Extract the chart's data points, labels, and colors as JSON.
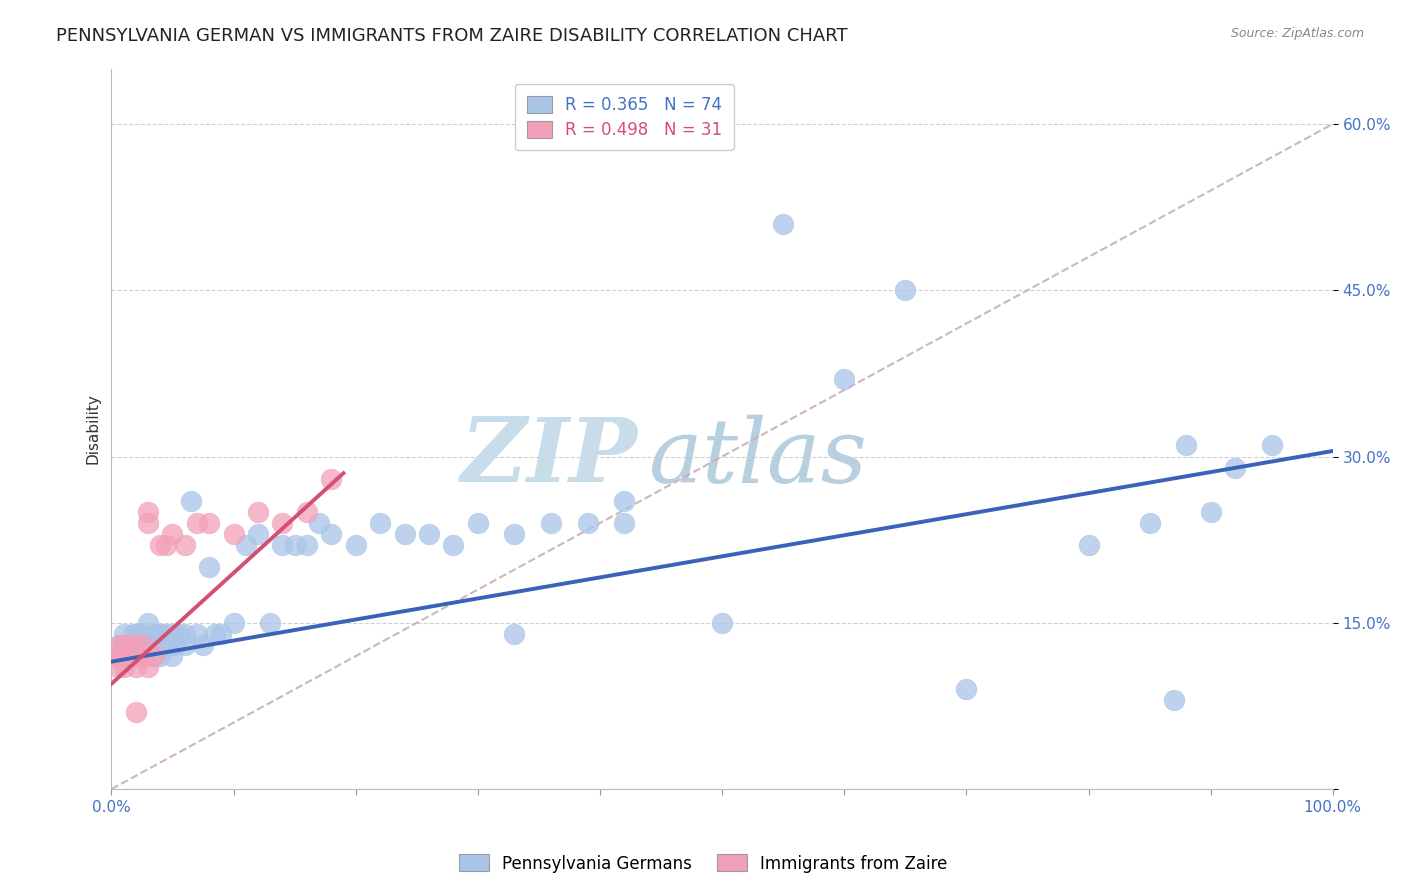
{
  "title": "PENNSYLVANIA GERMAN VS IMMIGRANTS FROM ZAIRE DISABILITY CORRELATION CHART",
  "source_text": "Source: ZipAtlas.com",
  "ylabel": "Disability",
  "watermark": "ZIPAtlas",
  "xlim": [
    0.0,
    1.0
  ],
  "ylim": [
    0.0,
    0.65
  ],
  "xticks": [
    0.0,
    0.1,
    0.2,
    0.3,
    0.4,
    0.5,
    0.6,
    0.7,
    0.8,
    0.9,
    1.0
  ],
  "xticklabels": [
    "0.0%",
    "",
    "",
    "",
    "",
    "",
    "",
    "",
    "",
    "",
    "100.0%"
  ],
  "yticks": [
    0.0,
    0.15,
    0.3,
    0.45,
    0.6
  ],
  "yticklabels": [
    "",
    "15.0%",
    "30.0%",
    "45.0%",
    "60.0%"
  ],
  "legend1_label": "R = 0.365   N = 74",
  "legend2_label": "R = 0.498   N = 31",
  "blue_dot_color": "#aac4e8",
  "pink_dot_color": "#f2a0b8",
  "blue_line_color": "#3a62b8",
  "pink_line_color": "#d45070",
  "dashed_line_color": "#c8b0b0",
  "title_fontsize": 13,
  "axis_label_fontsize": 11,
  "tick_fontsize": 11,
  "legend_fontsize": 12,
  "watermark_fontsize": 65,
  "watermark_color": "#cde4f0",
  "blue_x": [
    0.005,
    0.008,
    0.01,
    0.01,
    0.012,
    0.015,
    0.015,
    0.018,
    0.018,
    0.02,
    0.02,
    0.02,
    0.022,
    0.025,
    0.025,
    0.025,
    0.028,
    0.03,
    0.03,
    0.03,
    0.032,
    0.035,
    0.035,
    0.038,
    0.04,
    0.04,
    0.042,
    0.045,
    0.048,
    0.05,
    0.05,
    0.052,
    0.055,
    0.06,
    0.06,
    0.065,
    0.07,
    0.075,
    0.08,
    0.085,
    0.09,
    0.1,
    0.11,
    0.12,
    0.13,
    0.14,
    0.15,
    0.16,
    0.17,
    0.18,
    0.2,
    0.22,
    0.24,
    0.26,
    0.28,
    0.3,
    0.33,
    0.36,
    0.39,
    0.42,
    0.33,
    0.42,
    0.5,
    0.55,
    0.6,
    0.65,
    0.7,
    0.8,
    0.85,
    0.87,
    0.88,
    0.9,
    0.92,
    0.95
  ],
  "blue_y": [
    0.13,
    0.12,
    0.13,
    0.14,
    0.12,
    0.12,
    0.13,
    0.12,
    0.14,
    0.12,
    0.13,
    0.14,
    0.13,
    0.12,
    0.13,
    0.14,
    0.13,
    0.12,
    0.13,
    0.15,
    0.13,
    0.12,
    0.14,
    0.14,
    0.12,
    0.14,
    0.13,
    0.14,
    0.13,
    0.12,
    0.14,
    0.13,
    0.14,
    0.13,
    0.14,
    0.26,
    0.14,
    0.13,
    0.2,
    0.14,
    0.14,
    0.15,
    0.22,
    0.23,
    0.15,
    0.22,
    0.22,
    0.22,
    0.24,
    0.23,
    0.22,
    0.24,
    0.23,
    0.23,
    0.22,
    0.24,
    0.23,
    0.24,
    0.24,
    0.24,
    0.14,
    0.26,
    0.15,
    0.51,
    0.37,
    0.45,
    0.09,
    0.22,
    0.24,
    0.08,
    0.31,
    0.25,
    0.29,
    0.31
  ],
  "pink_x": [
    0.003,
    0.005,
    0.007,
    0.008,
    0.01,
    0.01,
    0.012,
    0.015,
    0.015,
    0.018,
    0.02,
    0.02,
    0.022,
    0.025,
    0.025,
    0.03,
    0.03,
    0.035,
    0.04,
    0.045,
    0.05,
    0.06,
    0.07,
    0.08,
    0.1,
    0.12,
    0.14,
    0.16,
    0.18,
    0.02,
    0.03
  ],
  "pink_y": [
    0.12,
    0.11,
    0.13,
    0.12,
    0.11,
    0.13,
    0.12,
    0.12,
    0.13,
    0.12,
    0.11,
    0.13,
    0.12,
    0.12,
    0.13,
    0.11,
    0.25,
    0.12,
    0.22,
    0.22,
    0.23,
    0.22,
    0.24,
    0.24,
    0.23,
    0.25,
    0.24,
    0.25,
    0.28,
    0.07,
    0.24
  ],
  "blue_line_x": [
    0.0,
    1.0
  ],
  "blue_line_y": [
    0.115,
    0.305
  ],
  "pink_line_x": [
    0.0,
    0.19
  ],
  "pink_line_y": [
    0.095,
    0.285
  ],
  "dash_line_x": [
    0.0,
    1.0
  ],
  "dash_line_y": [
    0.0,
    0.6
  ]
}
